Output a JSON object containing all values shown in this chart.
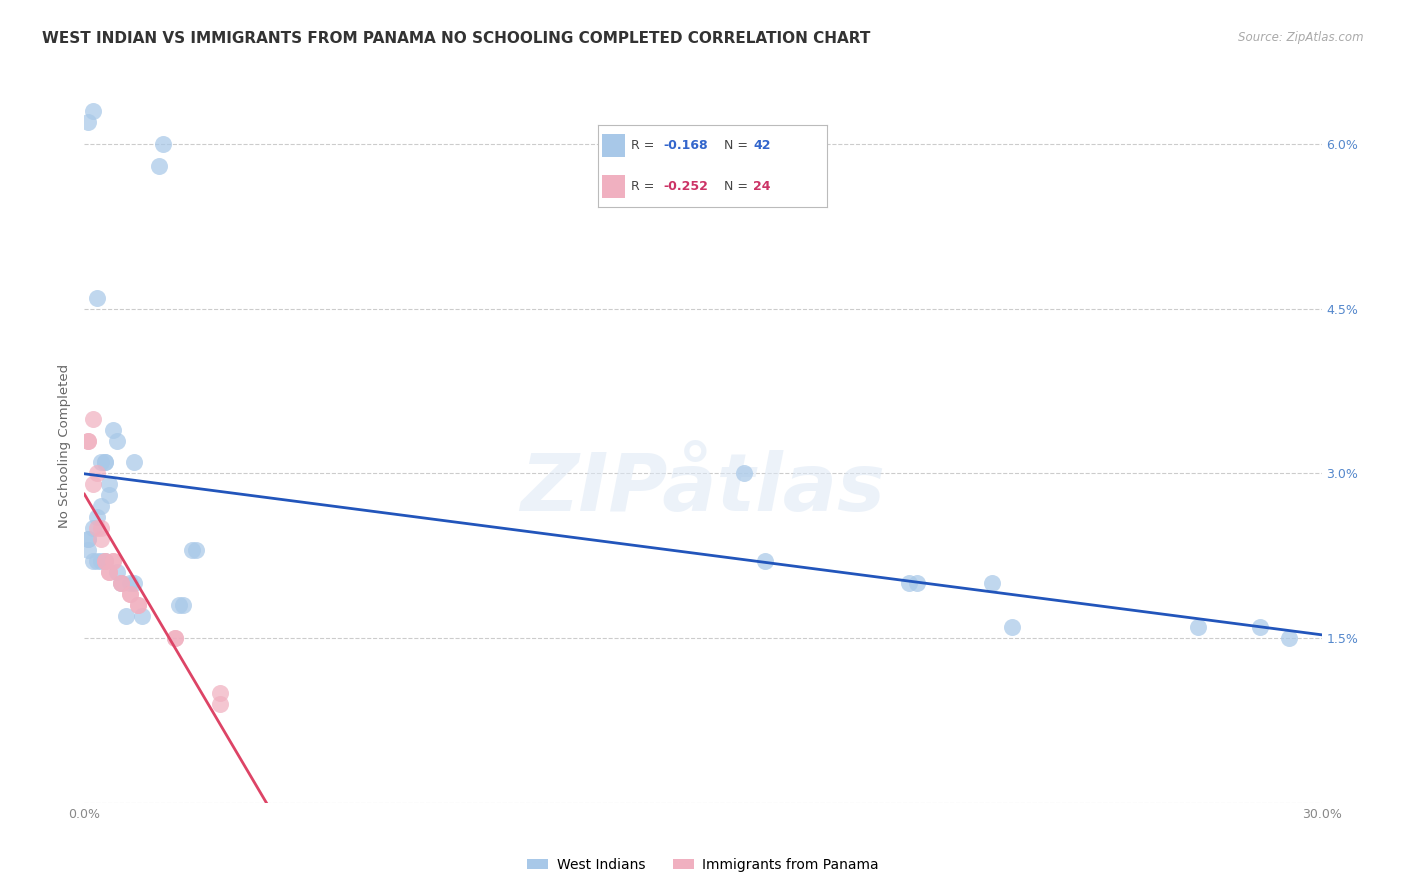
{
  "title": "WEST INDIAN VS IMMIGRANTS FROM PANAMA NO SCHOOLING COMPLETED CORRELATION CHART",
  "source": "Source: ZipAtlas.com",
  "ylabel": "No Schooling Completed",
  "xlim": [
    0.0,
    0.3
  ],
  "ylim": [
    0.0,
    0.065
  ],
  "xtick_vals": [
    0.0,
    0.3
  ],
  "xtick_labels": [
    "0.0%",
    "30.0%"
  ],
  "ytick_vals": [
    0.0,
    0.015,
    0.03,
    0.045,
    0.06
  ],
  "ytick_labels_right": [
    "",
    "1.5%",
    "3.0%",
    "4.5%",
    "6.0%"
  ],
  "blue_color": "#a8c8e8",
  "pink_color": "#f0b0c0",
  "blue_line_color": "#2255bb",
  "pink_line_color": "#dd4466",
  "legend_label_blue": "West Indians",
  "legend_label_pink": "Immigrants from Panama",
  "blue_R": "-0.168",
  "blue_N": "42",
  "pink_R": "-0.252",
  "pink_N": "24",
  "blue_x": [
    0.001,
    0.002,
    0.018,
    0.019,
    0.003,
    0.007,
    0.008,
    0.004,
    0.005,
    0.005,
    0.012,
    0.006,
    0.006,
    0.004,
    0.003,
    0.002,
    0.001,
    0.001,
    0.001,
    0.002,
    0.003,
    0.004,
    0.005,
    0.008,
    0.009,
    0.011,
    0.012,
    0.01,
    0.014,
    0.023,
    0.024,
    0.026,
    0.027,
    0.16,
    0.165,
    0.2,
    0.202,
    0.22,
    0.225,
    0.27,
    0.285,
    0.292
  ],
  "blue_y": [
    0.062,
    0.063,
    0.058,
    0.06,
    0.046,
    0.034,
    0.033,
    0.031,
    0.031,
    0.031,
    0.031,
    0.029,
    0.028,
    0.027,
    0.026,
    0.025,
    0.024,
    0.024,
    0.023,
    0.022,
    0.022,
    0.022,
    0.022,
    0.021,
    0.02,
    0.02,
    0.02,
    0.017,
    0.017,
    0.018,
    0.018,
    0.023,
    0.023,
    0.03,
    0.022,
    0.02,
    0.02,
    0.02,
    0.016,
    0.016,
    0.016,
    0.015
  ],
  "pink_x": [
    0.001,
    0.001,
    0.002,
    0.002,
    0.003,
    0.003,
    0.004,
    0.004,
    0.005,
    0.005,
    0.006,
    0.006,
    0.007,
    0.007,
    0.009,
    0.009,
    0.011,
    0.011,
    0.013,
    0.013,
    0.022,
    0.022,
    0.033,
    0.033
  ],
  "pink_y": [
    0.033,
    0.033,
    0.035,
    0.029,
    0.03,
    0.025,
    0.025,
    0.024,
    0.022,
    0.022,
    0.021,
    0.021,
    0.022,
    0.022,
    0.02,
    0.02,
    0.019,
    0.019,
    0.018,
    0.018,
    0.015,
    0.015,
    0.01,
    0.009
  ],
  "background_color": "#ffffff",
  "grid_color": "#cccccc",
  "title_fontsize": 11,
  "tick_fontsize": 9,
  "axis_label_fontsize": 9.5,
  "legend_fontsize": 10
}
